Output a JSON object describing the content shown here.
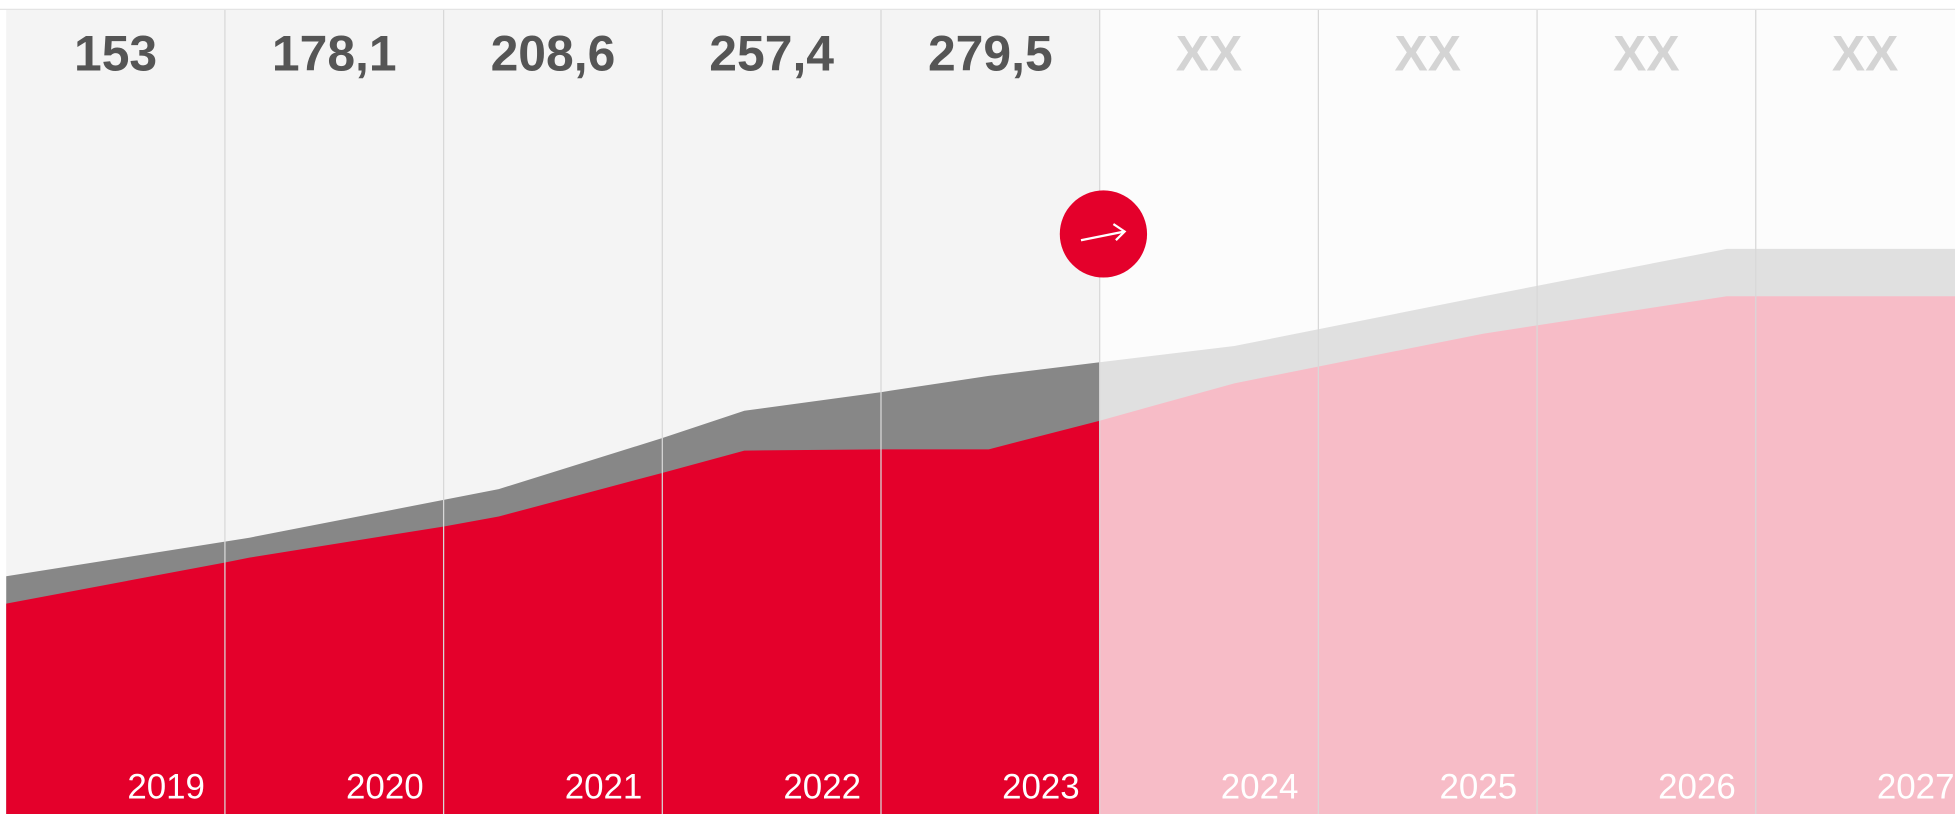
{
  "columns": [
    {
      "value": "153",
      "year": "2019"
    },
    {
      "value": "178,1",
      "year": "2020"
    },
    {
      "value": "208,6",
      "year": "2021"
    },
    {
      "value": "257,4",
      "year": "2022"
    },
    {
      "value": "279,5",
      "year": "2023"
    },
    {
      "value": "XX",
      "year": "2024"
    },
    {
      "value": "XX",
      "year": "2025"
    },
    {
      "value": "XX",
      "year": "2026"
    },
    {
      "value": "XX",
      "year": "2027"
    }
  ]
}
